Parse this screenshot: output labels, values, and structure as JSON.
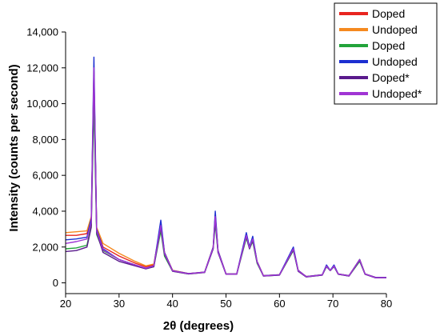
{
  "chart_data": {
    "type": "line",
    "xlabel": "2θ (degrees)",
    "ylabel": "Intensity (counts per second)",
    "xlim": [
      20,
      80
    ],
    "ylim": [
      -600,
      14000
    ],
    "x_ticks": [
      20,
      30,
      40,
      50,
      60,
      70,
      80
    ],
    "y_ticks": [
      0,
      2000,
      4000,
      6000,
      8000,
      10000,
      12000,
      14000
    ],
    "y_tick_labels": [
      "0",
      "2,000",
      "4,000",
      "6,000",
      "8,000",
      "10,000",
      "12,000",
      "14,000"
    ],
    "legend_position": "top-right",
    "grid": false,
    "series": [
      {
        "name": "Doped",
        "color": "#e8251f",
        "points": [
          [
            20,
            2650
          ],
          [
            22,
            2650
          ],
          [
            24,
            2750
          ],
          [
            24.8,
            3600
          ],
          [
            25.3,
            11500
          ],
          [
            25.8,
            3000
          ],
          [
            27,
            2000
          ],
          [
            30,
            1500
          ],
          [
            33,
            1100
          ],
          [
            35,
            900
          ],
          [
            36.5,
            1000
          ],
          [
            37.8,
            3300
          ],
          [
            38.5,
            1700
          ],
          [
            40,
            700
          ],
          [
            43,
            520
          ],
          [
            46,
            600
          ],
          [
            47.6,
            2000
          ],
          [
            48.0,
            3800
          ],
          [
            48.5,
            1800
          ],
          [
            50,
            500
          ],
          [
            52,
            500
          ],
          [
            53.8,
            2700
          ],
          [
            54.4,
            2000
          ],
          [
            55.0,
            2500
          ],
          [
            55.8,
            1200
          ],
          [
            57,
            400
          ],
          [
            60,
            450
          ],
          [
            62.6,
            1900
          ],
          [
            63.5,
            700
          ],
          [
            65,
            350
          ],
          [
            68,
            450
          ],
          [
            68.8,
            950
          ],
          [
            69.5,
            700
          ],
          [
            70.2,
            950
          ],
          [
            71,
            500
          ],
          [
            73,
            400
          ],
          [
            75.0,
            1300
          ],
          [
            76,
            500
          ],
          [
            78,
            300
          ],
          [
            80,
            300
          ]
        ]
      },
      {
        "name": "Undoped",
        "color": "#f5891f",
        "points": [
          [
            20,
            2800
          ],
          [
            22,
            2850
          ],
          [
            24,
            2900
          ],
          [
            24.8,
            3700
          ],
          [
            25.3,
            11600
          ],
          [
            25.8,
            3100
          ],
          [
            27,
            2200
          ],
          [
            30,
            1650
          ],
          [
            33,
            1200
          ],
          [
            35,
            950
          ],
          [
            36.5,
            1050
          ],
          [
            37.8,
            3200
          ],
          [
            38.5,
            1700
          ],
          [
            40,
            700
          ],
          [
            43,
            520
          ],
          [
            46,
            600
          ],
          [
            47.6,
            2000
          ],
          [
            48.0,
            3700
          ],
          [
            48.5,
            1800
          ],
          [
            50,
            500
          ],
          [
            52,
            500
          ],
          [
            53.8,
            2700
          ],
          [
            54.4,
            2000
          ],
          [
            55.0,
            2500
          ],
          [
            55.8,
            1200
          ],
          [
            57,
            400
          ],
          [
            60,
            450
          ],
          [
            62.6,
            1900
          ],
          [
            63.5,
            700
          ],
          [
            65,
            350
          ],
          [
            68,
            450
          ],
          [
            68.8,
            950
          ],
          [
            69.5,
            700
          ],
          [
            70.2,
            950
          ],
          [
            71,
            500
          ],
          [
            73,
            400
          ],
          [
            75.0,
            1300
          ],
          [
            76,
            500
          ],
          [
            78,
            300
          ],
          [
            80,
            300
          ]
        ]
      },
      {
        "name": "Doped",
        "color": "#22a33a",
        "points": [
          [
            20,
            1900
          ],
          [
            22,
            1950
          ],
          [
            24,
            2100
          ],
          [
            24.8,
            3200
          ],
          [
            25.3,
            10000
          ],
          [
            25.8,
            2700
          ],
          [
            27,
            1800
          ],
          [
            30,
            1300
          ],
          [
            33,
            1000
          ],
          [
            35,
            800
          ],
          [
            36.5,
            900
          ],
          [
            37.8,
            2900
          ],
          [
            38.5,
            1500
          ],
          [
            40,
            650
          ],
          [
            43,
            500
          ],
          [
            46,
            580
          ],
          [
            47.6,
            1900
          ],
          [
            48.0,
            3300
          ],
          [
            48.5,
            1700
          ],
          [
            50,
            480
          ],
          [
            52,
            480
          ],
          [
            53.8,
            2500
          ],
          [
            54.4,
            1900
          ],
          [
            55.0,
            2300
          ],
          [
            55.8,
            1100
          ],
          [
            57,
            380
          ],
          [
            60,
            430
          ],
          [
            62.6,
            1800
          ],
          [
            63.5,
            650
          ],
          [
            65,
            330
          ],
          [
            68,
            430
          ],
          [
            68.8,
            900
          ],
          [
            69.5,
            680
          ],
          [
            70.2,
            900
          ],
          [
            71,
            480
          ],
          [
            73,
            380
          ],
          [
            75.0,
            1200
          ],
          [
            76,
            480
          ],
          [
            78,
            280
          ],
          [
            80,
            280
          ]
        ]
      },
      {
        "name": "Undoped",
        "color": "#1c2fd1",
        "points": [
          [
            20,
            2400
          ],
          [
            22,
            2450
          ],
          [
            24,
            2550
          ],
          [
            24.8,
            3600
          ],
          [
            25.3,
            12600
          ],
          [
            25.8,
            3000
          ],
          [
            27,
            1900
          ],
          [
            30,
            1300
          ],
          [
            33,
            1000
          ],
          [
            35,
            820
          ],
          [
            36.5,
            950
          ],
          [
            37.8,
            3500
          ],
          [
            38.5,
            1700
          ],
          [
            40,
            680
          ],
          [
            43,
            520
          ],
          [
            46,
            600
          ],
          [
            47.6,
            2000
          ],
          [
            48.0,
            4000
          ],
          [
            48.5,
            1800
          ],
          [
            50,
            500
          ],
          [
            52,
            500
          ],
          [
            53.8,
            2800
          ],
          [
            54.4,
            2000
          ],
          [
            55.0,
            2600
          ],
          [
            55.8,
            1200
          ],
          [
            57,
            400
          ],
          [
            60,
            450
          ],
          [
            62.6,
            2000
          ],
          [
            63.5,
            700
          ],
          [
            65,
            350
          ],
          [
            68,
            450
          ],
          [
            68.8,
            1000
          ],
          [
            69.5,
            700
          ],
          [
            70.2,
            1000
          ],
          [
            71,
            500
          ],
          [
            73,
            400
          ],
          [
            75.0,
            1300
          ],
          [
            76,
            500
          ],
          [
            78,
            300
          ],
          [
            80,
            300
          ]
        ]
      },
      {
        "name": "Doped*",
        "color": "#5a1a8c",
        "points": [
          [
            20,
            1750
          ],
          [
            22,
            1800
          ],
          [
            24,
            2000
          ],
          [
            24.8,
            3100
          ],
          [
            25.3,
            11800
          ],
          [
            25.8,
            2800
          ],
          [
            27,
            1700
          ],
          [
            30,
            1200
          ],
          [
            33,
            950
          ],
          [
            35,
            780
          ],
          [
            36.5,
            900
          ],
          [
            37.8,
            3100
          ],
          [
            38.5,
            1600
          ],
          [
            40,
            650
          ],
          [
            43,
            500
          ],
          [
            46,
            580
          ],
          [
            47.6,
            1900
          ],
          [
            48.0,
            3600
          ],
          [
            48.5,
            1700
          ],
          [
            50,
            480
          ],
          [
            52,
            480
          ],
          [
            53.8,
            2600
          ],
          [
            54.4,
            1900
          ],
          [
            55.0,
            2400
          ],
          [
            55.8,
            1150
          ],
          [
            57,
            380
          ],
          [
            60,
            430
          ],
          [
            62.6,
            1850
          ],
          [
            63.5,
            650
          ],
          [
            65,
            330
          ],
          [
            68,
            430
          ],
          [
            68.8,
            920
          ],
          [
            69.5,
            680
          ],
          [
            70.2,
            920
          ],
          [
            71,
            480
          ],
          [
            73,
            380
          ],
          [
            75.0,
            1250
          ],
          [
            76,
            480
          ],
          [
            78,
            280
          ],
          [
            80,
            280
          ]
        ]
      },
      {
        "name": "Undoped*",
        "color": "#a035d4",
        "points": [
          [
            20,
            2200
          ],
          [
            22,
            2300
          ],
          [
            24,
            2450
          ],
          [
            24.8,
            3400
          ],
          [
            25.3,
            12000
          ],
          [
            25.8,
            2900
          ],
          [
            27,
            1850
          ],
          [
            30,
            1300
          ],
          [
            33,
            1000
          ],
          [
            35,
            820
          ],
          [
            36.5,
            950
          ],
          [
            37.8,
            3200
          ],
          [
            38.5,
            1650
          ],
          [
            40,
            670
          ],
          [
            43,
            510
          ],
          [
            46,
            590
          ],
          [
            47.6,
            1950
          ],
          [
            48.0,
            3700
          ],
          [
            48.5,
            1750
          ],
          [
            50,
            490
          ],
          [
            52,
            490
          ],
          [
            53.8,
            2650
          ],
          [
            54.4,
            1950
          ],
          [
            55.0,
            2450
          ],
          [
            55.8,
            1180
          ],
          [
            57,
            390
          ],
          [
            60,
            440
          ],
          [
            62.6,
            1900
          ],
          [
            63.5,
            680
          ],
          [
            65,
            340
          ],
          [
            68,
            440
          ],
          [
            68.8,
            940
          ],
          [
            69.5,
            690
          ],
          [
            70.2,
            940
          ],
          [
            71,
            490
          ],
          [
            73,
            390
          ],
          [
            75.0,
            1280
          ],
          [
            76,
            490
          ],
          [
            78,
            290
          ],
          [
            80,
            290
          ]
        ]
      }
    ]
  }
}
